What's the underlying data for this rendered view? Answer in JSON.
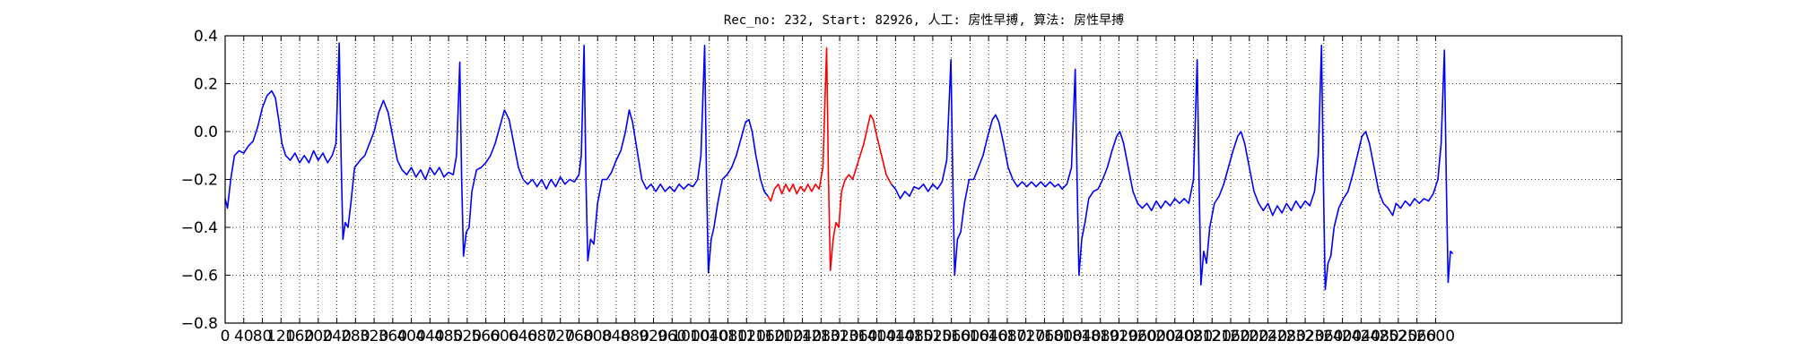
{
  "chart_data": {
    "type": "line",
    "title": "Rec_no: 232, Start: 82926, 人工: 房性早搏, 算法: 房性早搏",
    "xlim": [
      0,
      3000
    ],
    "ylim": [
      -0.8,
      0.4
    ],
    "yticks": [
      {
        "value": -0.8,
        "label": "−0.8"
      },
      {
        "value": -0.6,
        "label": "−0.6"
      },
      {
        "value": -0.4,
        "label": "−0.4"
      },
      {
        "value": -0.2,
        "label": "−0.2"
      },
      {
        "value": 0,
        "label": "0.0"
      },
      0.2,
      0.4
    ],
    "xticks": [
      0,
      40,
      80,
      120,
      160,
      200,
      240,
      280,
      320,
      360,
      400,
      440,
      480,
      520,
      560,
      600,
      640,
      680,
      720,
      760,
      800,
      840,
      880,
      920,
      960,
      1000,
      1040,
      1080,
      1120,
      1160,
      1200,
      1240,
      1280,
      1320,
      1360,
      1400,
      1440,
      1480,
      1520,
      1560,
      1600,
      1640,
      1680,
      1720,
      1760,
      1800,
      1840,
      1880,
      1920,
      1960,
      2000,
      2040,
      2080,
      2120,
      2160,
      2200,
      2240,
      2280,
      2320,
      2360,
      2400,
      2440,
      2480,
      2520,
      2560,
      2600
    ],
    "grid": true,
    "series": [
      {
        "color": "#0000ff",
        "x": [
          0,
          5,
          12,
          20,
          30,
          40,
          50,
          60,
          70,
          80,
          90,
          100,
          108,
          115,
          122,
          130,
          140,
          150,
          160,
          170,
          180,
          190,
          200,
          210,
          220,
          230,
          238,
          245,
          249,
          253,
          258,
          264,
          270,
          278,
          290,
          300,
          310,
          320,
          330,
          340,
          350,
          360,
          370,
          380,
          390,
          400,
          410,
          420,
          430,
          440,
          450,
          460,
          470,
          480,
          490,
          497,
          504,
          508,
          512,
          518,
          524,
          530,
          540,
          550,
          560,
          570,
          580,
          590,
          600,
          610,
          620,
          630,
          640,
          650,
          660,
          670,
          680,
          690,
          700,
          710,
          720,
          730,
          740,
          750,
          760,
          765,
          771,
          775,
          779,
          785,
          792,
          800,
          810,
          820,
          830,
          840,
          850,
          860,
          868,
          875,
          885,
          895,
          905,
          915,
          925,
          935,
          945,
          955,
          965,
          975,
          985,
          995,
          1005,
          1015,
          1022,
          1030,
          1034,
          1038,
          1044,
          1050,
          1058,
          1068,
          1078,
          1088,
          1098,
          1108,
          1118,
          1125,
          1132,
          1140,
          1150,
          1158,
          1166
        ],
        "values": [
          -0.28,
          -0.32,
          -0.2,
          -0.1,
          -0.08,
          -0.09,
          -0.06,
          -0.04,
          0.02,
          0.1,
          0.15,
          0.17,
          0.14,
          0.05,
          -0.05,
          -0.1,
          -0.12,
          -0.09,
          -0.13,
          -0.1,
          -0.13,
          -0.08,
          -0.12,
          -0.09,
          -0.13,
          -0.1,
          -0.05,
          0.37,
          -0.1,
          -0.45,
          -0.38,
          -0.4,
          -0.3,
          -0.15,
          -0.12,
          -0.1,
          -0.05,
          0.0,
          0.08,
          0.13,
          0.08,
          -0.02,
          -0.12,
          -0.16,
          -0.18,
          -0.15,
          -0.19,
          -0.16,
          -0.2,
          -0.15,
          -0.18,
          -0.15,
          -0.19,
          -0.17,
          -0.18,
          -0.1,
          0.29,
          -0.2,
          -0.52,
          -0.42,
          -0.4,
          -0.25,
          -0.16,
          -0.15,
          -0.13,
          -0.1,
          -0.05,
          0.02,
          0.09,
          0.05,
          -0.05,
          -0.15,
          -0.2,
          -0.22,
          -0.2,
          -0.23,
          -0.2,
          -0.24,
          -0.2,
          -0.23,
          -0.19,
          -0.22,
          -0.2,
          -0.21,
          -0.18,
          -0.1,
          0.36,
          -0.2,
          -0.54,
          -0.45,
          -0.47,
          -0.3,
          -0.2,
          -0.2,
          -0.17,
          -0.12,
          -0.08,
          0.0,
          0.09,
          0.04,
          -0.08,
          -0.2,
          -0.24,
          -0.22,
          -0.25,
          -0.22,
          -0.25,
          -0.23,
          -0.25,
          -0.22,
          -0.24,
          -0.22,
          -0.23,
          -0.2,
          -0.1,
          0.36,
          -0.2,
          -0.59,
          -0.45,
          -0.4,
          -0.3,
          -0.2,
          -0.18,
          -0.15,
          -0.1,
          -0.03,
          0.04,
          0.05,
          0.0,
          -0.1,
          -0.2,
          -0.25,
          -0.27
        ]
      },
      {
        "color": "#ff0000",
        "x": [
          1166,
          1172,
          1180,
          1188,
          1196,
          1204,
          1212,
          1220,
          1228,
          1236,
          1244,
          1252,
          1260,
          1268,
          1276,
          1284,
          1292,
          1296,
          1300,
          1306,
          1312,
          1318,
          1324,
          1332,
          1340,
          1348,
          1356,
          1364,
          1372,
          1380,
          1386,
          1392,
          1400,
          1410,
          1420,
          1431
        ],
        "values": [
          -0.27,
          -0.29,
          -0.24,
          -0.22,
          -0.26,
          -0.22,
          -0.25,
          -0.22,
          -0.26,
          -0.23,
          -0.25,
          -0.22,
          -0.25,
          -0.22,
          -0.24,
          -0.15,
          0.35,
          -0.2,
          -0.58,
          -0.45,
          -0.38,
          -0.4,
          -0.25,
          -0.2,
          -0.18,
          -0.2,
          -0.15,
          -0.1,
          -0.05,
          0.02,
          0.07,
          0.05,
          -0.02,
          -0.1,
          -0.18,
          -0.22
        ]
      },
      {
        "color": "#0000ff",
        "x": [
          1431,
          1440,
          1450,
          1460,
          1470,
          1480,
          1490,
          1500,
          1510,
          1520,
          1530,
          1540,
          1550,
          1559,
          1563,
          1567,
          1573,
          1580,
          1588,
          1598,
          1608,
          1618,
          1628,
          1638,
          1648,
          1655,
          1662,
          1672,
          1682,
          1692,
          1702,
          1712,
          1722,
          1732,
          1742,
          1752,
          1762,
          1772,
          1782,
          1790,
          1798,
          1808,
          1818,
          1826,
          1830,
          1834,
          1840,
          1847,
          1855,
          1865,
          1875,
          1885,
          1895,
          1905,
          1915,
          1922,
          1930,
          1940,
          1950,
          1960,
          1970,
          1980,
          1990,
          2000,
          2010,
          2020,
          2030,
          2040,
          2050,
          2060,
          2070,
          2080,
          2088,
          2092,
          2096,
          2102,
          2108,
          2115,
          2125,
          2135,
          2145,
          2155,
          2165,
          2175,
          2182,
          2190,
          2200,
          2210,
          2220,
          2230,
          2240,
          2250,
          2260,
          2270,
          2280,
          2290,
          2300,
          2310,
          2320,
          2330,
          2340,
          2348,
          2355,
          2359,
          2363,
          2369,
          2375,
          2382,
          2392,
          2402,
          2412,
          2422,
          2432,
          2442,
          2450,
          2458,
          2468,
          2478,
          2488,
          2498,
          2508,
          2515,
          2525,
          2535,
          2545,
          2555,
          2565,
          2575,
          2585,
          2595,
          2605,
          2612,
          2619,
          2623,
          2627,
          2632,
          2637
        ],
        "values": [
          -0.22,
          -0.24,
          -0.28,
          -0.25,
          -0.27,
          -0.23,
          -0.24,
          -0.22,
          -0.25,
          -0.22,
          -0.24,
          -0.21,
          -0.12,
          0.3,
          -0.2,
          -0.6,
          -0.45,
          -0.42,
          -0.3,
          -0.2,
          -0.2,
          -0.15,
          -0.1,
          -0.02,
          0.05,
          0.07,
          0.04,
          -0.05,
          -0.15,
          -0.2,
          -0.23,
          -0.21,
          -0.23,
          -0.21,
          -0.23,
          -0.21,
          -0.23,
          -0.21,
          -0.23,
          -0.22,
          -0.24,
          -0.22,
          -0.15,
          0.26,
          -0.2,
          -0.6,
          -0.45,
          -0.38,
          -0.28,
          -0.25,
          -0.24,
          -0.2,
          -0.15,
          -0.08,
          -0.02,
          0.0,
          -0.05,
          -0.15,
          -0.25,
          -0.3,
          -0.32,
          -0.3,
          -0.33,
          -0.29,
          -0.32,
          -0.29,
          -0.31,
          -0.28,
          -0.3,
          -0.28,
          -0.3,
          -0.2,
          0.3,
          -0.2,
          -0.64,
          -0.5,
          -0.55,
          -0.4,
          -0.3,
          -0.27,
          -0.22,
          -0.15,
          -0.08,
          -0.02,
          0.0,
          -0.05,
          -0.15,
          -0.25,
          -0.3,
          -0.33,
          -0.3,
          -0.35,
          -0.31,
          -0.34,
          -0.3,
          -0.33,
          -0.29,
          -0.32,
          -0.29,
          -0.31,
          -0.25,
          -0.1,
          0.36,
          -0.2,
          -0.66,
          -0.55,
          -0.52,
          -0.4,
          -0.32,
          -0.28,
          -0.25,
          -0.18,
          -0.1,
          -0.02,
          0.0,
          -0.05,
          -0.15,
          -0.25,
          -0.3,
          -0.32,
          -0.35,
          -0.3,
          -0.32,
          -0.29,
          -0.31,
          -0.28,
          -0.3,
          -0.28,
          -0.29,
          -0.26,
          -0.2,
          -0.05,
          0.34,
          -0.2,
          -0.63,
          -0.5,
          -0.51
        ]
      }
    ]
  }
}
